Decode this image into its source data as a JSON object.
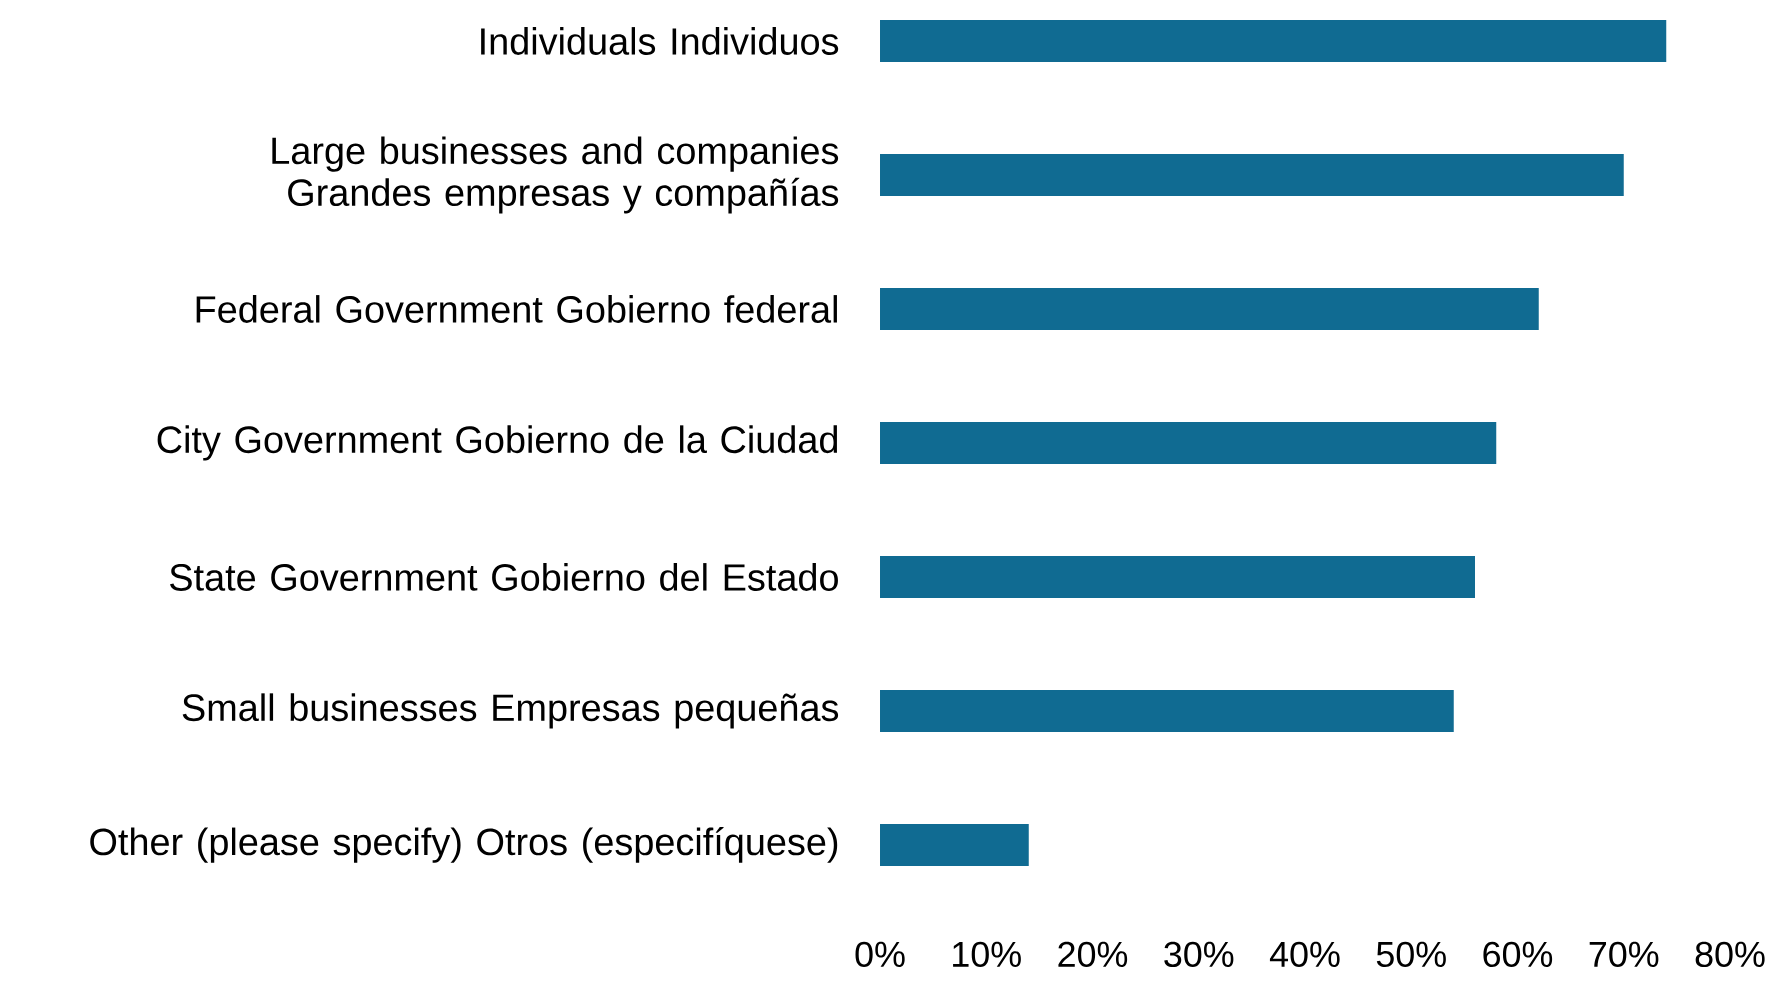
{
  "chart_data": {
    "type": "bar",
    "orientation": "horizontal",
    "categories": [
      "Individuals Individuos",
      "Large businesses and companies Grandes empresas y compañías",
      "Federal Government Gobierno federal",
      "City Government Gobierno de la Ciudad",
      "State Government Gobierno del Estado",
      "Small businesses Empresas pequeñas",
      "Other (please specify) Otros (especifíquese)"
    ],
    "values": [
      74,
      70,
      62,
      58,
      56,
      54,
      14
    ],
    "color": "#106b92",
    "xlim": [
      0,
      80
    ],
    "xticks": [
      {
        "value": 0,
        "label": "0%"
      },
      {
        "value": 10,
        "label": "10%"
      },
      {
        "value": 20,
        "label": "20%"
      },
      {
        "value": 30,
        "label": "30%"
      },
      {
        "value": 40,
        "label": "40%"
      },
      {
        "value": 50,
        "label": "50%"
      },
      {
        "value": 60,
        "label": "60%"
      },
      {
        "value": 70,
        "label": "70%"
      },
      {
        "value": 80,
        "label": "80%"
      }
    ],
    "grid": false
  }
}
